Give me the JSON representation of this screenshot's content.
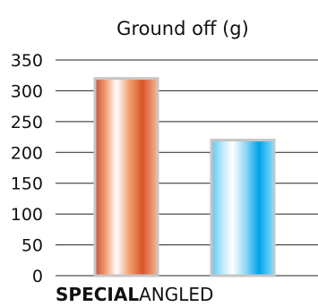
{
  "chart_data": {
    "type": "bar",
    "title": "Ground off (g)",
    "categories": [
      "",
      ""
    ],
    "values": [
      320,
      220
    ],
    "ylim": [
      0,
      350
    ],
    "yticks": [
      0,
      50,
      100,
      150,
      200,
      250,
      300,
      350
    ],
    "grid": true,
    "xlabel": "",
    "ylabel": "",
    "colors": {
      "bar1": "#e06030",
      "bar2": "#00a8ec",
      "grid": "#222222",
      "frame": "#c6c6c6"
    }
  },
  "footer": {
    "brand_bold": "SPECIAL",
    "brand_light": "ANGLED"
  }
}
